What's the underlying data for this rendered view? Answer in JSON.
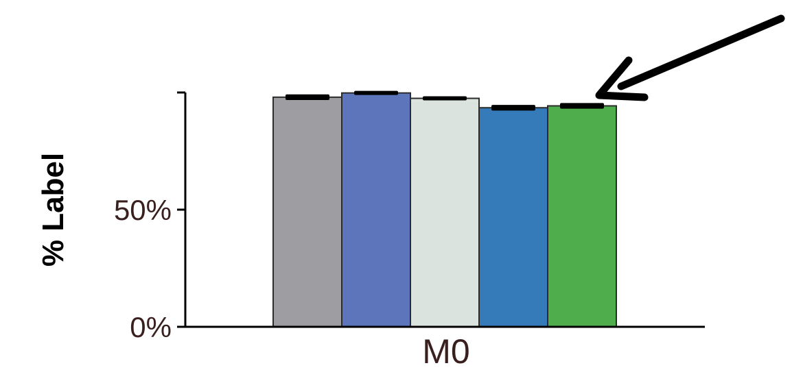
{
  "chart_data": {
    "type": "bar",
    "categories": [
      "M0"
    ],
    "series": [
      {
        "color": "#9e9da2",
        "values": [
          0.98
        ],
        "error": [
          0.012
        ]
      },
      {
        "color": "#5d76bb",
        "values": [
          0.998
        ],
        "error": [
          0.006
        ]
      },
      {
        "color": "#dbe3df",
        "values": [
          0.975
        ],
        "error": [
          0.008
        ]
      },
      {
        "color": "#357bba",
        "values": [
          0.935
        ],
        "error": [
          0.012
        ]
      },
      {
        "color": "#4fae4b",
        "values": [
          0.943
        ],
        "error": [
          0.012
        ]
      }
    ],
    "title": "",
    "xlabel": "",
    "ylabel": "% Label",
    "ylim": [
      0,
      1.0
    ],
    "yticks": [
      {
        "value": 0,
        "label": "0%"
      },
      {
        "value": 0.5,
        "label": "50%"
      }
    ],
    "annotations": [
      {
        "type": "arrow",
        "target": "series-5-bar",
        "direction": "from-upper-right"
      }
    ],
    "grid": false,
    "legend": "none"
  }
}
